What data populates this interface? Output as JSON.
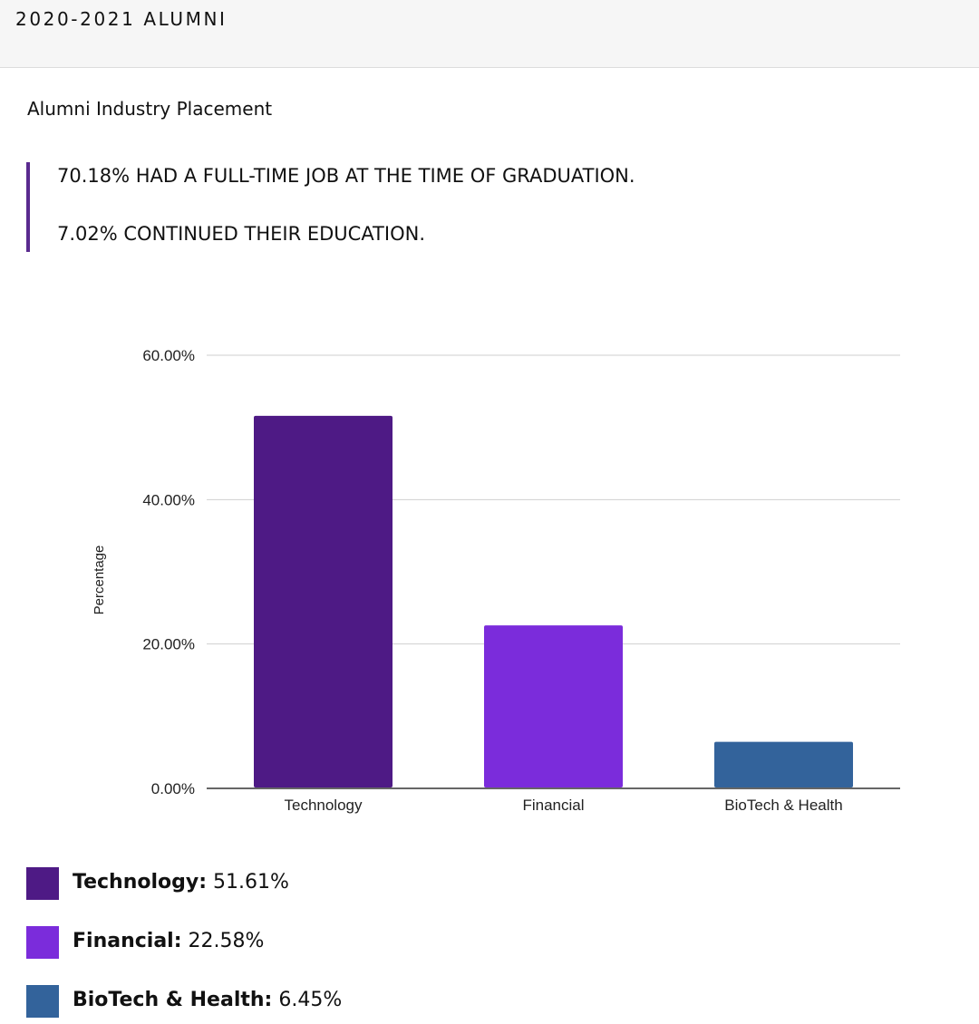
{
  "header": {
    "title": "2020-2021 ALUMNI"
  },
  "section": {
    "title": "Alumni Industry Placement"
  },
  "highlights": [
    "70.18% HAD A FULL-TIME JOB AT THE TIME OF GRADUATION.",
    "7.02% CONTINUED THEIR EDUCATION."
  ],
  "colors": {
    "accent": "#5a2a8f",
    "technology": "#4e1a85",
    "financial": "#7b2cdb",
    "biotech": "#33639b"
  },
  "chart_data": {
    "type": "bar",
    "categories": [
      "Technology",
      "Financial",
      "BioTech & Health"
    ],
    "values": [
      51.61,
      22.58,
      6.45
    ],
    "colors": [
      "#4e1a85",
      "#7b2cdb",
      "#33639b"
    ],
    "ylabel": "Percentage",
    "ylim": [
      0,
      60
    ],
    "yticks": [
      "0.00%",
      "20.00%",
      "40.00%",
      "60.00%"
    ],
    "ytick_values": [
      0,
      20,
      40,
      60
    ],
    "grid": true
  },
  "legend": [
    {
      "name": "Technology:",
      "value": "51.61%"
    },
    {
      "name": "Financial:",
      "value": "22.58%"
    },
    {
      "name": "BioTech & Health:",
      "value": "6.45%"
    }
  ]
}
